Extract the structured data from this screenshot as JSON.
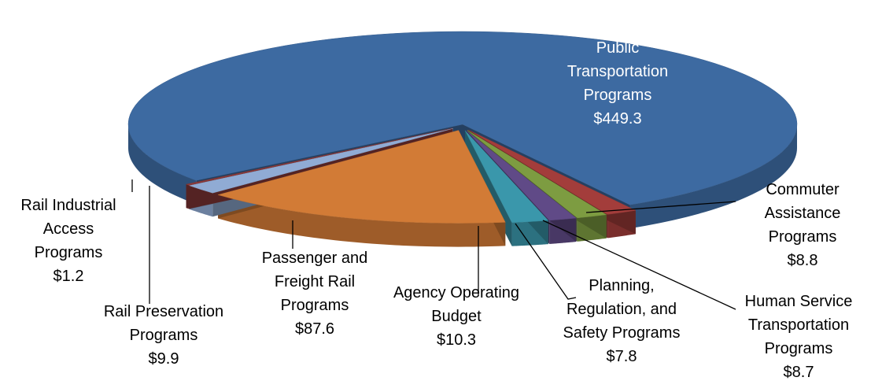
{
  "chart_data": {
    "type": "pie",
    "categories": [
      "Public Transportation Programs",
      "Commuter Assistance Programs",
      "Human Service Transportation Programs",
      "Planning, Regulation, and Safety Programs",
      "Agency Operating Budget",
      "Passenger and Freight Rail Programs",
      "Rail Preservation Programs",
      "Rail Industrial Access Programs"
    ],
    "values": [
      449.3,
      8.8,
      8.7,
      7.8,
      10.3,
      87.6,
      9.9,
      1.2
    ],
    "value_labels": [
      "$449.3",
      "$8.8",
      "$8.7",
      "$7.8",
      "$10.3",
      "$87.6",
      "$9.9",
      "$1.2"
    ],
    "colors": [
      "#3d6aa1",
      "#a33d3b",
      "#7d9c41",
      "#604a87",
      "#3a97ab",
      "#d27b36",
      "#90abd4",
      "#8c3b3b"
    ]
  }
}
